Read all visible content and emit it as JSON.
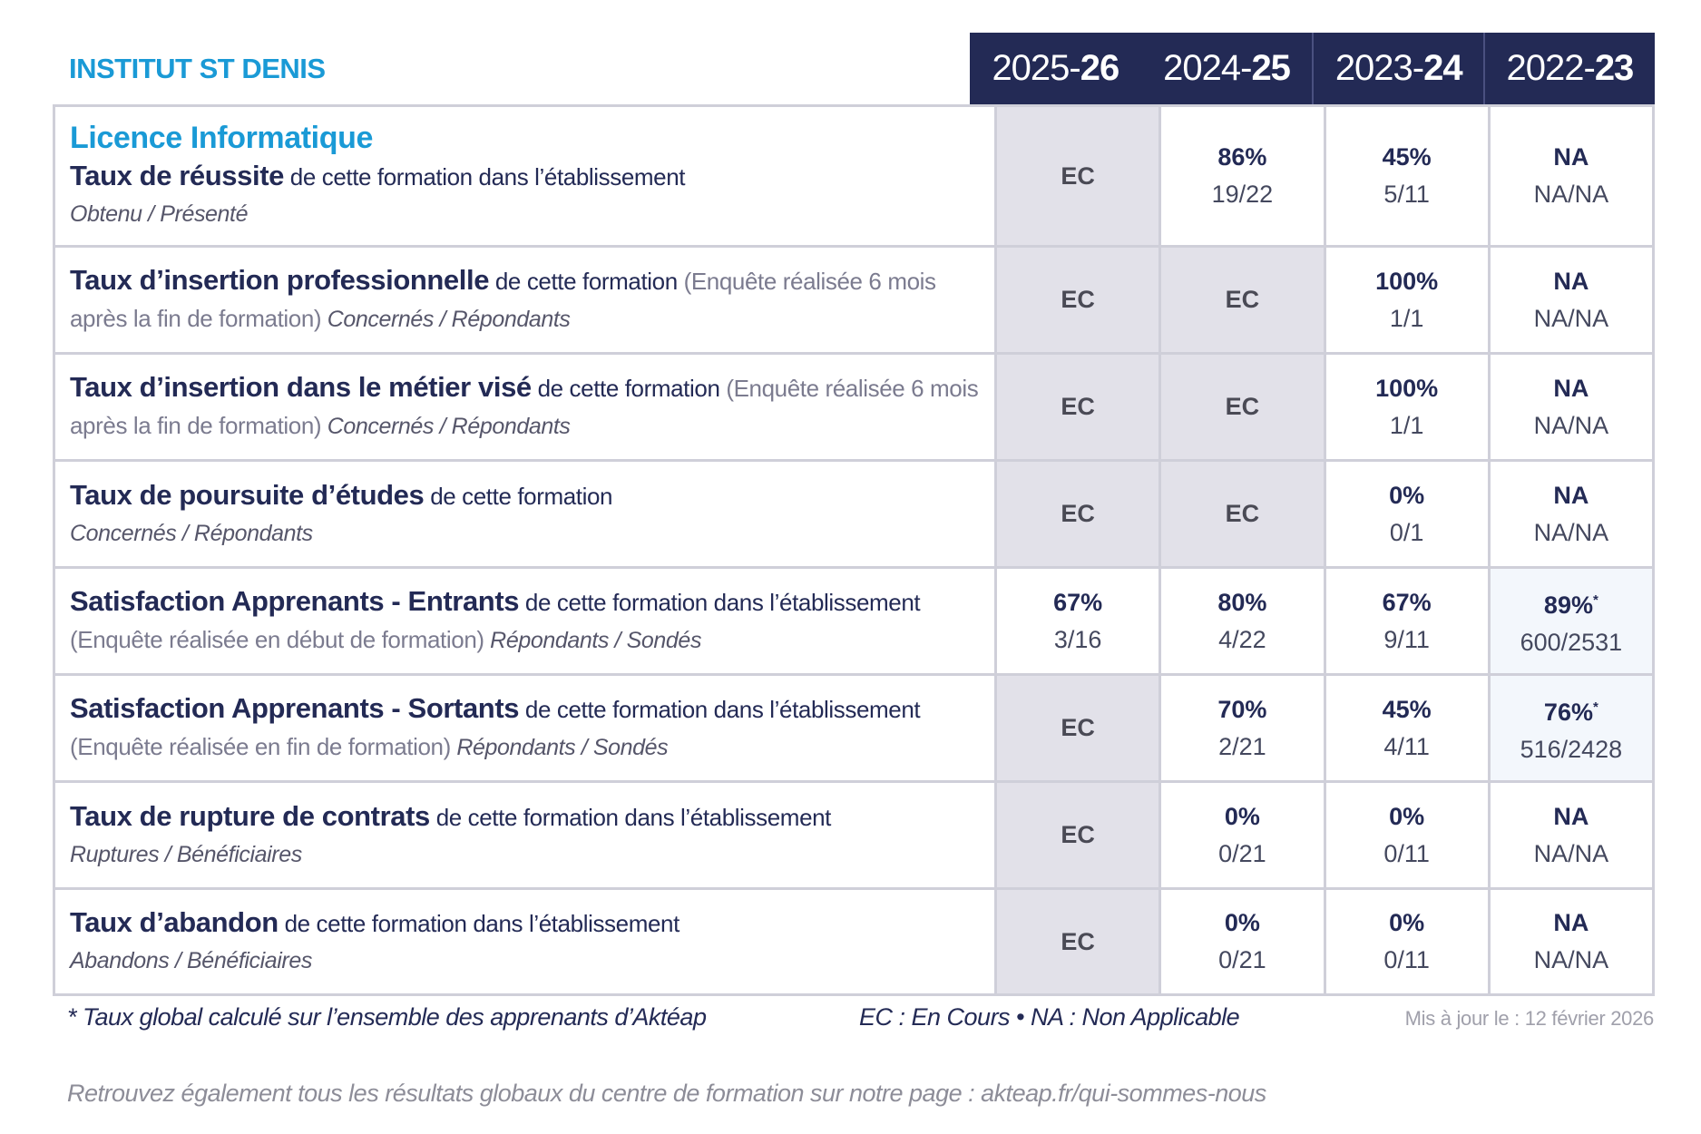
{
  "institute": "INSTITUT ST DENIS",
  "years": [
    {
      "prefix": "2025-",
      "suffix": "26"
    },
    {
      "prefix": "2024-",
      "suffix": "25"
    },
    {
      "prefix": "2023-",
      "suffix": "24"
    },
    {
      "prefix": "2022-",
      "suffix": "23"
    }
  ],
  "program": "Licence Informatique",
  "rows": [
    {
      "title": "Taux de réussite",
      "desc": " de cette formation dans l’établissement",
      "note": "",
      "measure": "Obtenu / Présenté",
      "cells": [
        {
          "v": "EC",
          "s": "",
          "type": "ec"
        },
        {
          "v": "86%",
          "s": "19/22",
          "type": "normal"
        },
        {
          "v": "45%",
          "s": "5/11",
          "type": "normal"
        },
        {
          "v": "NA",
          "s": "NA/NA",
          "type": "normal"
        }
      ]
    },
    {
      "title": "Taux d’insertion professionnelle",
      "desc": " de cette formation ",
      "note": "(Enquête réalisée 6 mois après la fin de formation)",
      "measure": " Concernés / Répondants",
      "cells": [
        {
          "v": "EC",
          "s": "",
          "type": "ec"
        },
        {
          "v": "EC",
          "s": "",
          "type": "ec"
        },
        {
          "v": "100%",
          "s": "1/1",
          "type": "normal"
        },
        {
          "v": "NA",
          "s": "NA/NA",
          "type": "normal"
        }
      ]
    },
    {
      "title": "Taux d’insertion dans le métier visé",
      "desc": " de cette formation ",
      "note": "(Enquête réalisée 6 mois après la fin de formation)",
      "measure": " Concernés / Répondants",
      "cells": [
        {
          "v": "EC",
          "s": "",
          "type": "ec"
        },
        {
          "v": "EC",
          "s": "",
          "type": "ec"
        },
        {
          "v": "100%",
          "s": "1/1",
          "type": "normal"
        },
        {
          "v": "NA",
          "s": "NA/NA",
          "type": "normal"
        }
      ]
    },
    {
      "title": "Taux de poursuite d’études",
      "desc": " de cette formation",
      "note": "",
      "measure": "Concernés / Répondants",
      "cells": [
        {
          "v": "EC",
          "s": "",
          "type": "ec"
        },
        {
          "v": "EC",
          "s": "",
          "type": "ec"
        },
        {
          "v": "0%",
          "s": "0/1",
          "type": "normal"
        },
        {
          "v": "NA",
          "s": "NA/NA",
          "type": "normal"
        }
      ]
    },
    {
      "title": "Satisfaction Apprenants - Entrants",
      "desc": " de cette formation dans l’établissement ",
      "note": "(Enquête réalisée en début de formation)",
      "measure": " Répondants / Sondés",
      "cells": [
        {
          "v": "67%",
          "s": "3/16",
          "type": "normal"
        },
        {
          "v": "80%",
          "s": "4/22",
          "type": "normal"
        },
        {
          "v": "67%",
          "s": "9/11",
          "type": "normal"
        },
        {
          "v": "89%",
          "s": "600/2531",
          "type": "global",
          "star": "*"
        }
      ]
    },
    {
      "title": "Satisfaction Apprenants - Sortants",
      "desc": " de cette formation dans l’établissement ",
      "note": "(Enquête réalisée en fin de formation)",
      "measure": " Répondants / Sondés",
      "cells": [
        {
          "v": "EC",
          "s": "",
          "type": "ec"
        },
        {
          "v": "70%",
          "s": "2/21",
          "type": "normal"
        },
        {
          "v": "45%",
          "s": "4/11",
          "type": "normal"
        },
        {
          "v": "76%",
          "s": "516/2428",
          "type": "global",
          "star": "*"
        }
      ]
    },
    {
      "title": "Taux de rupture de contrats",
      "desc": " de cette formation dans l’établissement",
      "note": "",
      "measure": "Ruptures / Bénéficiaires",
      "cells": [
        {
          "v": "EC",
          "s": "",
          "type": "ec"
        },
        {
          "v": "0%",
          "s": "0/21",
          "type": "normal"
        },
        {
          "v": "0%",
          "s": "0/11",
          "type": "normal"
        },
        {
          "v": "NA",
          "s": "NA/NA",
          "type": "normal"
        }
      ]
    },
    {
      "title": "Taux d’abandon",
      "desc": " de cette formation dans l’établissement",
      "note": "",
      "measure": "Abandons / Bénéficiaires",
      "cells": [
        {
          "v": "EC",
          "s": "",
          "type": "ec"
        },
        {
          "v": "0%",
          "s": "0/21",
          "type": "normal"
        },
        {
          "v": "0%",
          "s": "0/11",
          "type": "normal"
        },
        {
          "v": "NA",
          "s": "NA/NA",
          "type": "normal"
        }
      ]
    }
  ],
  "footer": {
    "global_note": "* Taux global calculé sur l’ensemble des apprenants d’Aktéap",
    "legend": "EC : En Cours  •  NA : Non Applicable",
    "updated": "Mis à jour le : 12 février 2026",
    "link_text": "Retrouvez également tous les résultats globaux du centre de formation sur notre page : akteap.fr/qui-sommes-nous"
  },
  "colors": {
    "navy": "#232a55",
    "accent_blue": "#1a9ad6",
    "ec_bg": "#e2e1e9",
    "global_bg": "#f3f7fc"
  }
}
